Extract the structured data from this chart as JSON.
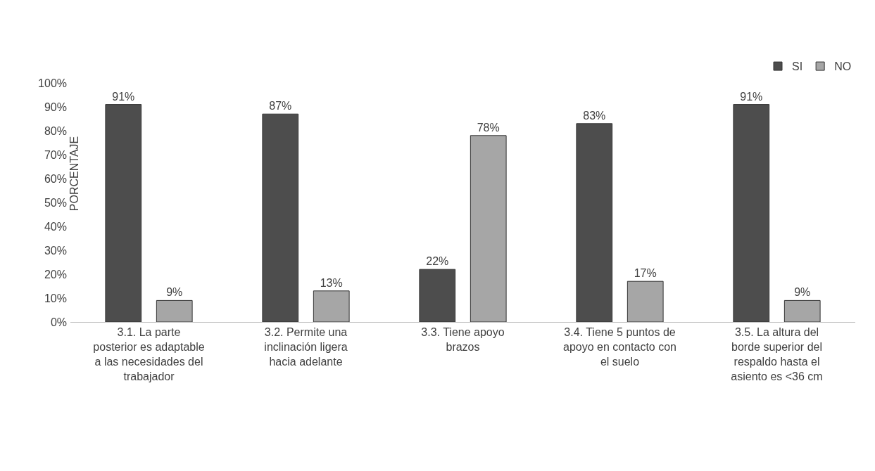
{
  "chart_data": {
    "type": "bar",
    "ylabel": "PORCENTAJE",
    "categories": [
      "3.1. La parte posterior es adaptable a las necesidades del trabajador",
      "3.2. Permite una inclinación ligera hacia adelante",
      "3.3. Tiene apoyo brazos",
      "3.4. Tiene 5 puntos de apoyo en contacto con el suelo",
      "3.5. La altura del borde superior del respaldo hasta el asiento es <36 cm"
    ],
    "series": [
      {
        "name": "SI",
        "color": "#4d4d4d",
        "values": [
          91,
          87,
          22,
          83,
          91
        ],
        "value_labels": [
          "91%",
          "87%",
          "22%",
          "83%",
          "91%"
        ]
      },
      {
        "name": "NO",
        "color": "#a6a6a6",
        "values": [
          9,
          13,
          78,
          17,
          9
        ],
        "value_labels": [
          "9%",
          "13%",
          "78%",
          "17%",
          "9%"
        ]
      }
    ],
    "ylim": [
      0,
      100
    ],
    "yticks": [
      {
        "value": 0,
        "label": "0%"
      },
      {
        "value": 10,
        "label": "10%"
      },
      {
        "value": 20,
        "label": "20%"
      },
      {
        "value": 30,
        "label": "30%"
      },
      {
        "value": 40,
        "label": "40%"
      },
      {
        "value": 50,
        "label": "50%"
      },
      {
        "value": 60,
        "label": "60%"
      },
      {
        "value": 70,
        "label": "70%"
      },
      {
        "value": 80,
        "label": "80%"
      },
      {
        "value": 90,
        "label": "90%"
      },
      {
        "value": 100,
        "label": "100%"
      }
    ],
    "grid": false,
    "legend": "top right"
  }
}
